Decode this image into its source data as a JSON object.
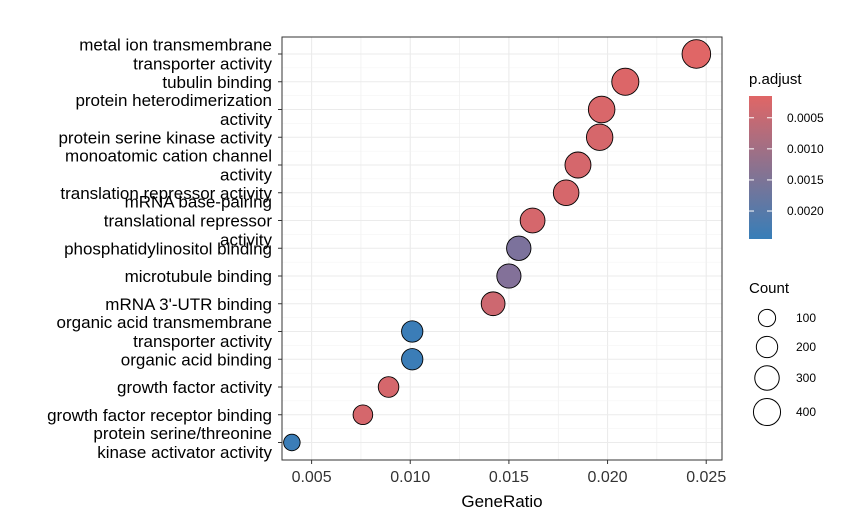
{
  "chart_data": {
    "type": "scatter",
    "xlabel": "GeneRatio",
    "ylabel": "",
    "xlim": [
      0.0035,
      0.0258
    ],
    "x_ticks": [
      "0.005",
      "0.010",
      "0.015",
      "0.020",
      "0.025"
    ],
    "x_tick_values": [
      0.005,
      0.01,
      0.015,
      0.02,
      0.025
    ],
    "grid": true,
    "categories": [
      [
        "metal ion transmembrane",
        "transporter activity"
      ],
      [
        "tubulin binding"
      ],
      [
        "protein heterodimerization",
        "activity"
      ],
      [
        "protein serine kinase activity"
      ],
      [
        "monoatomic cation channel",
        "activity"
      ],
      [
        "translation repressor activity"
      ],
      [
        "mRNA base-pairing",
        "translational repressor",
        "activity"
      ],
      [
        "phosphatidylinositol binding"
      ],
      [
        "microtubule binding"
      ],
      [
        "mRNA 3'-UTR binding"
      ],
      [
        "organic acid transmembrane",
        "transporter activity"
      ],
      [
        "organic acid binding"
      ],
      [
        "growth factor activity"
      ],
      [
        "growth factor receptor binding"
      ],
      [
        "protein serine/threonine",
        "kinase activator activity"
      ]
    ],
    "points": [
      {
        "x": 0.0245,
        "count": 420,
        "p_adjust": 0.00015
      },
      {
        "x": 0.0209,
        "count": 360,
        "p_adjust": 0.0002
      },
      {
        "x": 0.0197,
        "count": 340,
        "p_adjust": 0.00025
      },
      {
        "x": 0.0196,
        "count": 335,
        "p_adjust": 0.00028
      },
      {
        "x": 0.0185,
        "count": 318,
        "p_adjust": 0.0003
      },
      {
        "x": 0.0179,
        "count": 305,
        "p_adjust": 0.00028
      },
      {
        "x": 0.0162,
        "count": 277,
        "p_adjust": 0.0003
      },
      {
        "x": 0.0155,
        "count": 263,
        "p_adjust": 0.0015
      },
      {
        "x": 0.015,
        "count": 257,
        "p_adjust": 0.0014
      },
      {
        "x": 0.0142,
        "count": 243,
        "p_adjust": 0.0004
      },
      {
        "x": 0.0101,
        "count": 172,
        "p_adjust": 0.0024
      },
      {
        "x": 0.0101,
        "count": 172,
        "p_adjust": 0.0024
      },
      {
        "x": 0.0089,
        "count": 152,
        "p_adjust": 0.0003
      },
      {
        "x": 0.0076,
        "count": 130,
        "p_adjust": 0.0003
      },
      {
        "x": 0.004,
        "count": 68,
        "p_adjust": 0.0024
      }
    ],
    "color_legend": {
      "title": "p.adjust",
      "ticks": [
        "0.0005",
        "0.0010",
        "0.0015",
        "0.0020"
      ],
      "tick_values": [
        0.0005,
        0.001,
        0.0015,
        0.002
      ],
      "range": [
        0.00015,
        0.00245
      ],
      "low_color": "#E06666",
      "high_color": "#377EB8"
    },
    "size_legend": {
      "title": "Count",
      "labels": [
        "100",
        "200",
        "300",
        "400"
      ],
      "values": [
        100,
        200,
        300,
        400
      ]
    }
  }
}
